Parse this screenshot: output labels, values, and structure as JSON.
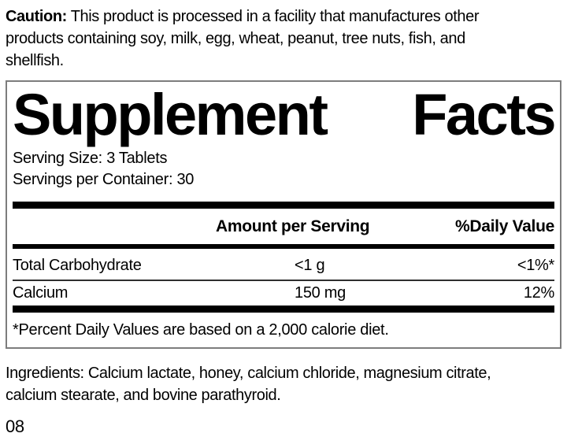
{
  "colors": {
    "background": "#ffffff",
    "text": "#000000",
    "panel_border": "#7d7d7d",
    "bar": "#000000"
  },
  "caution": {
    "label": "Caution:",
    "lines": [
      "This product is processed in a facility that manufactures other",
      "products containing soy, milk, egg, wheat, peanut, tree nuts, fish, and",
      "shellfish."
    ]
  },
  "panel": {
    "title": {
      "word1": "Supplement",
      "word2": "Facts"
    },
    "serving_size": "Serving Size: 3 Tablets",
    "servings_per_container": "Servings per Container: 30",
    "columns": {
      "amount_header": "Amount per Serving",
      "daily_value_header": "%Daily Value"
    },
    "rows": [
      {
        "name": "Total Carbohydrate",
        "amount": "<1 g",
        "daily_value": "<1%*"
      },
      {
        "name": "Calcium",
        "amount": "150 mg",
        "daily_value": "12%"
      }
    ],
    "footnote": "*Percent Daily Values are based on a 2,000 calorie diet."
  },
  "ingredients": {
    "lines": [
      "Ingredients: Calcium lactate, honey, calcium chloride, magnesium citrate,",
      "calcium stearate, and bovine parathyroid."
    ]
  },
  "footer": {
    "code": "08"
  }
}
